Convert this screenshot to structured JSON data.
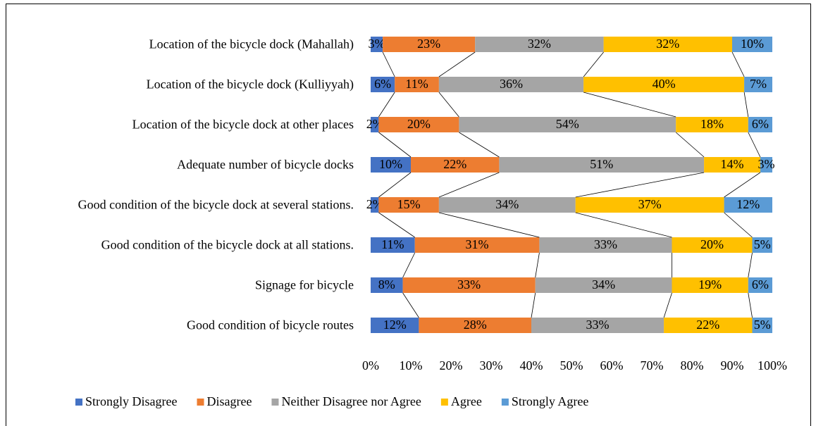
{
  "chart_data": {
    "type": "stacked_bar_horizontal",
    "categories": [
      "Location of the bicycle dock (Mahallah)",
      "Location of the bicycle dock (Kulliyyah)",
      "Location of the bicycle dock at other places",
      "Adequate number of bicycle docks",
      "Good condition of the bicycle dock at several stations.",
      "Good condition of the bicycle dock at all stations.",
      "Signage for bicycle",
      "Good condition of bicycle routes"
    ],
    "series": [
      {
        "name": "Strongly Disagree",
        "color": "#4472c4",
        "values": [
          3,
          6,
          2,
          10,
          2,
          11,
          8,
          12
        ],
        "value_labels": [
          "3%",
          "6%",
          "2%",
          "10%",
          "2%",
          "11%",
          "8%",
          "12%"
        ]
      },
      {
        "name": "Disagree",
        "color": "#ed7d31",
        "values": [
          23,
          11,
          20,
          22,
          15,
          31,
          33,
          28
        ],
        "value_labels": [
          "23%",
          "11%",
          "20%",
          "22%",
          "15%",
          "31%",
          "33%",
          "28%"
        ]
      },
      {
        "name": "Neither Disagree nor Agree",
        "color": "#a5a5a5",
        "values": [
          32,
          36,
          54,
          51,
          34,
          33,
          34,
          33
        ],
        "value_labels": [
          "32%",
          "36%",
          "54%",
          "51%",
          "34%",
          "33%",
          "34%",
          "33%"
        ]
      },
      {
        "name": "Agree",
        "color": "#ffc000",
        "values": [
          32,
          40,
          18,
          14,
          37,
          20,
          19,
          22
        ],
        "value_labels": [
          "32%",
          "40%",
          "18%",
          "14%",
          "37%",
          "20%",
          "19%",
          "22%"
        ]
      },
      {
        "name": "Strongly Agree",
        "color": "#5b9bd5",
        "values": [
          10,
          7,
          6,
          3,
          12,
          5,
          6,
          5
        ],
        "value_labels": [
          "10%",
          "7%",
          "6%",
          "3%",
          "12%",
          "5%",
          "6%",
          "5%"
        ]
      }
    ],
    "xlim": [
      0,
      100
    ],
    "xticks": [
      {
        "value": 0,
        "label": "0%"
      },
      {
        "value": 10,
        "label": "10%"
      },
      {
        "value": 20,
        "label": "20%"
      },
      {
        "value": 30,
        "label": "30%"
      },
      {
        "value": 40,
        "label": "40%"
      },
      {
        "value": 50,
        "label": "50%"
      },
      {
        "value": 60,
        "label": "60%"
      },
      {
        "value": 70,
        "label": "70%"
      },
      {
        "value": 80,
        "label": "80%"
      },
      {
        "value": 90,
        "label": "90%"
      },
      {
        "value": 100,
        "label": "100%"
      }
    ],
    "legend": "bottom",
    "series_lines": true
  }
}
